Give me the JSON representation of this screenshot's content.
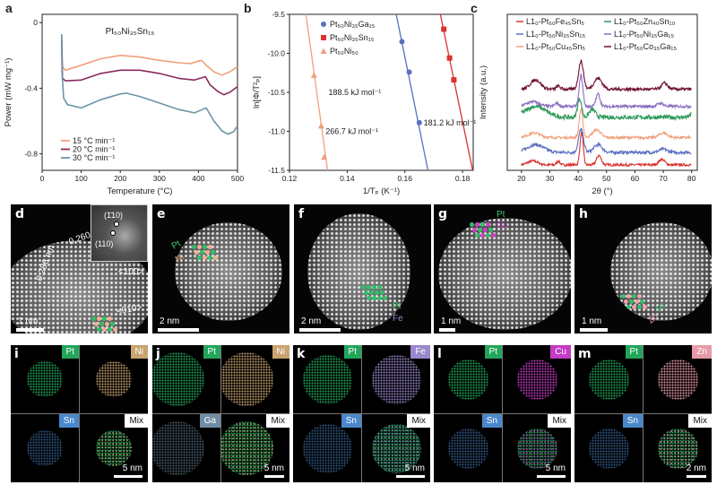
{
  "chart_data": [
    {
      "panel": "a",
      "type": "line",
      "title": "Pt₅₀Ni₃₅Sn₁₅",
      "xlabel": "Temperature (°C)",
      "ylabel": "Power (mW mg⁻¹)",
      "xlim": [
        0,
        500
      ],
      "ylim": [
        -0.9,
        0.05
      ],
      "xticks": [
        "0",
        "100",
        "200",
        "300",
        "400",
        "500"
      ],
      "xtick_values": [
        0,
        100,
        200,
        300,
        400,
        500
      ],
      "yticks": [
        "0",
        "-0.4",
        "-0.8"
      ],
      "ytick_values": [
        0,
        -0.4,
        -0.8
      ],
      "legend": "bottom-left",
      "series": [
        {
          "name": "15 °C min⁻¹",
          "color": "#f0a07c",
          "x": [
            50,
            52,
            60,
            100,
            150,
            200,
            250,
            300,
            350,
            380,
            400,
            408,
            420,
            440,
            460,
            480,
            500
          ],
          "y": [
            -0.08,
            -0.27,
            -0.29,
            -0.26,
            -0.22,
            -0.2,
            -0.21,
            -0.23,
            -0.245,
            -0.25,
            -0.235,
            -0.23,
            -0.26,
            -0.3,
            -0.32,
            -0.3,
            -0.27
          ]
        },
        {
          "name": "20 °C min⁻¹",
          "color": "#8a2a5c",
          "x": [
            50,
            52,
            60,
            100,
            150,
            200,
            250,
            300,
            350,
            390,
            410,
            418,
            430,
            450,
            465,
            480,
            500
          ],
          "y": [
            -0.1,
            -0.34,
            -0.355,
            -0.35,
            -0.31,
            -0.29,
            -0.29,
            -0.31,
            -0.34,
            -0.35,
            -0.335,
            -0.33,
            -0.38,
            -0.42,
            -0.44,
            -0.425,
            -0.39
          ]
        },
        {
          "name": "30 °C min⁻¹",
          "color": "#6a95a6",
          "x": [
            50,
            51,
            55,
            65,
            100,
            150,
            200,
            215,
            250,
            300,
            350,
            390,
            410,
            420,
            440,
            460,
            475,
            490,
            500
          ],
          "y": [
            -0.07,
            -0.3,
            -0.46,
            -0.5,
            -0.52,
            -0.47,
            -0.435,
            -0.43,
            -0.45,
            -0.49,
            -0.53,
            -0.55,
            -0.53,
            -0.52,
            -0.6,
            -0.66,
            -0.68,
            -0.665,
            -0.63
          ]
        }
      ]
    },
    {
      "panel": "b",
      "type": "scatter",
      "xlabel": "1/Tₚ (K⁻¹)",
      "ylabel": "ln[Φ/T²ₚ]",
      "xlim": [
        0.12,
        0.1837
      ],
      "ylim": [
        -11.5,
        -9.5
      ],
      "xticks": [
        "0.12",
        "0.14",
        "0.16",
        "0.18"
      ],
      "xtick_values": [
        0.12,
        0.14,
        0.16,
        0.18
      ],
      "yticks": [
        "-9.5",
        "-10.0",
        "-10.5",
        "-11.0",
        "-11.5"
      ],
      "ytick_values": [
        -9.5,
        -10.0,
        -10.5,
        -11.0,
        -11.5
      ],
      "legend": "top-left",
      "series": [
        {
          "name": "Pt₅₀Ni₃₅Ga₁₅",
          "color": "#5b6fc0",
          "marker": "circle",
          "x": [
            0.159,
            0.1615,
            0.165
          ],
          "y": [
            -9.85,
            -10.24,
            -10.89
          ],
          "fit": [
            [
              0.157,
              -9.5
            ],
            [
              0.168,
              -11.5
            ]
          ],
          "label": "188.5 kJ mol⁻¹",
          "label_at": [
            0.1335,
            -10.5
          ]
        },
        {
          "name": "Pt₅₀Ni₃₅Sn₁₅",
          "color": "#d8332f",
          "marker": "square",
          "x": [
            0.1735,
            0.1755,
            0.177
          ],
          "y": [
            -9.69,
            -10.06,
            -10.34
          ],
          "fit": [
            [
              0.1723,
              -9.5
            ],
            [
              0.1835,
              -11.5
            ]
          ],
          "label": "181.2 kJ mol⁻¹",
          "label_at": [
            0.1665,
            -10.89
          ]
        },
        {
          "name": "Pt₅₀Ni₅₀",
          "color": "#f0a07c",
          "marker": "triangle",
          "x": [
            0.1285,
            0.131,
            0.132
          ],
          "y": [
            -10.28,
            -10.93,
            -11.33
          ],
          "fit": [
            [
              0.1257,
              -9.5
            ],
            [
              0.1332,
              -11.5
            ]
          ],
          "label": "266.7 kJ mol⁻¹",
          "label_at": [
            0.1325,
            -11.0
          ]
        }
      ]
    },
    {
      "panel": "c",
      "type": "line",
      "xlabel": "2θ (°)",
      "ylabel": "Intensity (a.u.)",
      "xlim": [
        15,
        82
      ],
      "ylim": [
        0,
        100
      ],
      "xticks": [
        "20",
        "30",
        "40",
        "50",
        "60",
        "70",
        "80"
      ],
      "xtick_values": [
        20,
        30,
        40,
        50,
        60,
        70,
        80
      ],
      "legend": "top",
      "series": [
        {
          "name": "L1₀-Pt₅₀Fe₄₅Sn₅",
          "color": "#d8332f",
          "offset": 3.5,
          "noise": 0.8,
          "peaks": [
            [
              24,
              2.5,
              2.5
            ],
            [
              33,
              2.5,
              0.8
            ],
            [
              41.2,
              21,
              0.8
            ],
            [
              47.3,
              6,
              1.2
            ],
            [
              69.5,
              3.5,
              1.5
            ]
          ]
        },
        {
          "name": "L1₀-Pt₅₀Ni₃₅Sn₁₅",
          "color": "#5b6fc0",
          "offset": 11.5,
          "noise": 1.0,
          "peaks": [
            [
              25,
              5,
              4
            ],
            [
              41,
              15,
              1.2
            ],
            [
              47,
              5,
              2
            ],
            [
              70,
              2,
              2
            ]
          ]
        },
        {
          "name": "L1₀-Pt₅₀Cu₄₅Sn₅",
          "color": "#f0a07c",
          "offset": 21,
          "noise": 0.8,
          "peaks": [
            [
              24.5,
              3,
              3
            ],
            [
              41,
              18,
              0.9
            ],
            [
              46.5,
              5,
              2
            ],
            [
              70,
              3,
              2
            ]
          ]
        },
        {
          "name": "L1₀-Pt₅₀Zn₄₀Sn₁₀",
          "color": "#2e9a5a",
          "offset": 34,
          "noise": 1.4,
          "peaks": [
            [
              25,
              7,
              5
            ],
            [
              40.5,
              12,
              1
            ],
            [
              45,
              5,
              1.5
            ],
            [
              80,
              2,
              1
            ]
          ]
        },
        {
          "name": "L1₀-Pt₅₀Ni₃₅Ga₁₅",
          "color": "#8a6cc0",
          "offset": 41,
          "noise": 0.9,
          "peaks": [
            [
              24,
              3,
              3
            ],
            [
              32.5,
              2,
              1
            ],
            [
              41,
              20,
              0.9
            ],
            [
              47,
              8,
              1
            ],
            [
              69,
              2,
              1.5
            ]
          ]
        },
        {
          "name": "L1₀-Pt₅₀Co₃₅Ga₁₅",
          "color": "#6e0f35",
          "offset": 52,
          "noise": 1.0,
          "peaks": [
            [
              25,
              6,
              2.5
            ],
            [
              33,
              2,
              1
            ],
            [
              41,
              18,
              1.2
            ],
            [
              47,
              7,
              2
            ],
            [
              70.5,
              4,
              1.5
            ]
          ]
        }
      ]
    }
  ],
  "panel_letters": {
    "a": "a",
    "b": "b",
    "c": "c"
  },
  "micrographs": [
    {
      "letter": "d",
      "scale": "1 nm",
      "scale_frac": 0.2,
      "annotations": [
        "0.260 nm",
        "0.286 nm",
        "Pt",
        "Ni",
        "<100>",
        "<010>"
      ],
      "inset": [
        "(1̄10)",
        "(110)"
      ]
    },
    {
      "letter": "e",
      "scale": "2 nm",
      "scale_frac": 0.3,
      "annotations": [
        "Pt",
        "Ni"
      ]
    },
    {
      "letter": "f",
      "scale": "2 nm",
      "scale_frac": 0.3,
      "annotations": [
        "Pt",
        "Fe"
      ]
    },
    {
      "letter": "g",
      "scale": "1 nm",
      "scale_frac": 0.12,
      "annotations": [
        "Pt",
        "Cu"
      ]
    },
    {
      "letter": "h",
      "scale": "1 nm",
      "scale_frac": 0.2,
      "annotations": [
        "Pt",
        "Zn"
      ]
    }
  ],
  "eds": [
    {
      "letter": "i",
      "maps": [
        "Pt",
        "Ni",
        "Sn",
        "Mix"
      ],
      "scale": "5 nm"
    },
    {
      "letter": "j",
      "maps": [
        "Pt",
        "Ni",
        "Ga",
        "Mix"
      ],
      "scale": "5 nm"
    },
    {
      "letter": "k",
      "maps": [
        "Pt",
        "Fe",
        "Sn",
        "Mix"
      ],
      "scale": "5 nm"
    },
    {
      "letter": "l",
      "maps": [
        "Pt",
        "Cu",
        "Sn",
        "Mix"
      ],
      "scale": "5 nm"
    },
    {
      "letter": "m",
      "maps": [
        "Pt",
        "Zn",
        "Sn",
        "Mix"
      ],
      "scale": "2 nm"
    }
  ],
  "element_colors": {
    "Pt": "#22a65a",
    "Ni": "#c9a370",
    "Sn": "#4a88cc",
    "Ga": "#6f8ca4",
    "Fe": "#9a88cc",
    "Cu": "#c43cc4",
    "Zn": "#e89aa8",
    "Mix": "#ffffff"
  }
}
